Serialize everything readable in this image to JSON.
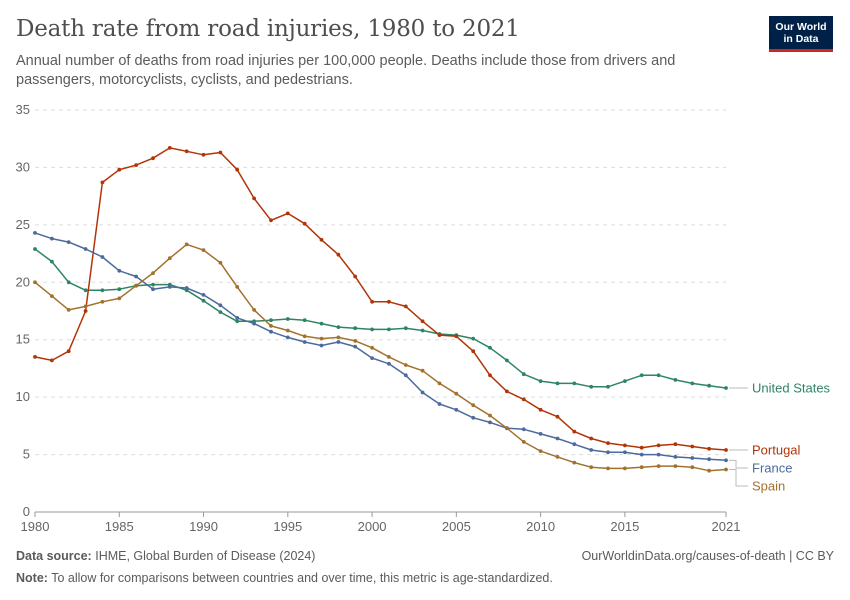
{
  "header": {
    "title": "Death rate from road injuries, 1980 to 2021",
    "subtitle": "Annual number of deaths from road injuries per 100,000 people. Deaths include those from drivers and passengers, motorcyclists, cyclists, and pedestrians.",
    "logo_line1": "Our World",
    "logo_line2": "in Data"
  },
  "footer": {
    "source_label": "Data source:",
    "source_text": "IHME, Global Burden of Disease (2024)",
    "url_text": "OurWorldinData.org/causes-of-death | CC BY",
    "note_label": "Note:",
    "note_text": "To allow for comparisons between countries and over time, this metric is age-standardized."
  },
  "colors": {
    "United States": "#2f8465",
    "Portugal": "#b13507",
    "France": "#4c6a9c",
    "Spain": "#a2722d",
    "grid": "#dddddd",
    "axis_text": "#666666"
  },
  "chart_data": {
    "type": "line",
    "x": [
      1980,
      1981,
      1982,
      1983,
      1984,
      1985,
      1986,
      1987,
      1988,
      1989,
      1990,
      1991,
      1992,
      1993,
      1994,
      1995,
      1996,
      1997,
      1998,
      1999,
      2000,
      2001,
      2002,
      2003,
      2004,
      2005,
      2006,
      2007,
      2008,
      2009,
      2010,
      2011,
      2012,
      2013,
      2014,
      2015,
      2016,
      2017,
      2018,
      2019,
      2020,
      2021
    ],
    "xlim": [
      1980,
      2021
    ],
    "ylim": [
      0,
      35
    ],
    "x_ticks": [
      1980,
      1985,
      1990,
      1995,
      2000,
      2005,
      2010,
      2015,
      2021
    ],
    "y_ticks": [
      0,
      5,
      10,
      15,
      20,
      25,
      30,
      35
    ],
    "grid": "horizontal dashed",
    "legend": "right, labels at line ends",
    "series": [
      {
        "name": "United States",
        "values": [
          22.9,
          21.8,
          20.0,
          19.3,
          19.3,
          19.4,
          19.7,
          19.8,
          19.8,
          19.3,
          18.4,
          17.4,
          16.6,
          16.6,
          16.7,
          16.8,
          16.7,
          16.4,
          16.1,
          16.0,
          15.9,
          15.9,
          16.0,
          15.8,
          15.5,
          15.4,
          15.1,
          14.3,
          13.2,
          12.0,
          11.4,
          11.2,
          11.2,
          10.9,
          10.9,
          11.4,
          11.9,
          11.9,
          11.5,
          11.2,
          11.0,
          10.8
        ]
      },
      {
        "name": "Portugal",
        "values": [
          13.5,
          13.2,
          14.0,
          17.5,
          28.7,
          29.8,
          30.2,
          30.8,
          31.7,
          31.4,
          31.1,
          31.3,
          29.8,
          27.3,
          25.4,
          26.0,
          25.1,
          23.7,
          22.4,
          20.5,
          18.3,
          18.3,
          17.9,
          16.6,
          15.4,
          15.3,
          14.0,
          11.9,
          10.5,
          9.8,
          8.9,
          8.3,
          7.0,
          6.4,
          6.0,
          5.8,
          5.6,
          5.8,
          5.9,
          5.7,
          5.5,
          5.4
        ]
      },
      {
        "name": "France",
        "values": [
          24.3,
          23.8,
          23.5,
          22.9,
          22.2,
          21.0,
          20.5,
          19.4,
          19.6,
          19.5,
          18.9,
          18.0,
          16.9,
          16.4,
          15.7,
          15.2,
          14.8,
          14.5,
          14.8,
          14.4,
          13.4,
          12.9,
          11.9,
          10.4,
          9.4,
          8.9,
          8.2,
          7.8,
          7.3,
          7.2,
          6.8,
          6.4,
          5.9,
          5.4,
          5.2,
          5.2,
          5.0,
          5.0,
          4.8,
          4.7,
          4.6,
          4.5
        ]
      },
      {
        "name": "Spain",
        "values": [
          20.0,
          18.8,
          17.6,
          17.9,
          18.3,
          18.6,
          19.7,
          20.8,
          22.1,
          23.3,
          22.8,
          21.7,
          19.6,
          17.6,
          16.2,
          15.8,
          15.3,
          15.1,
          15.2,
          14.9,
          14.3,
          13.5,
          12.8,
          12.3,
          11.2,
          10.3,
          9.3,
          8.4,
          7.3,
          6.1,
          5.3,
          4.8,
          4.3,
          3.9,
          3.8,
          3.8,
          3.9,
          4.0,
          4.0,
          3.9,
          3.6,
          3.7
        ]
      }
    ]
  }
}
